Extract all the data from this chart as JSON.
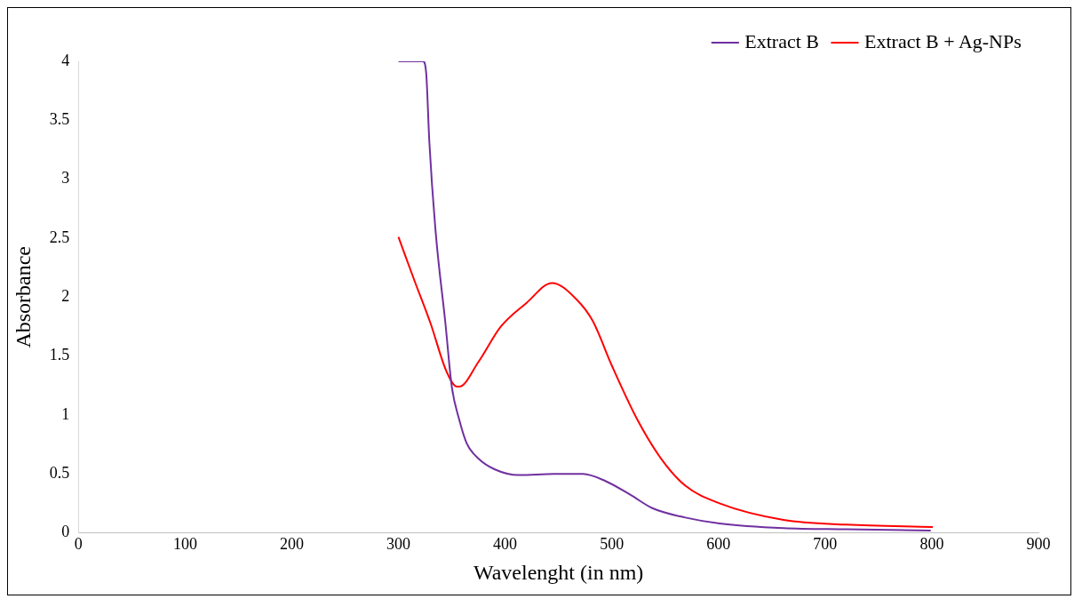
{
  "chart_data": {
    "type": "line",
    "xlabel": "Wavelenght (in nm)",
    "ylabel": "Absorbance",
    "xlim": [
      0,
      900
    ],
    "xticks": [
      0,
      100,
      200,
      300,
      400,
      500,
      600,
      700,
      800,
      900
    ],
    "ylim": [
      0,
      4
    ],
    "yticks": [
      0,
      0.5,
      1,
      1.5,
      2,
      2.5,
      3,
      3.5,
      4
    ],
    "grid": false,
    "legend": "top right",
    "marker": "none",
    "line_style": "solid",
    "series": [
      {
        "name": "Extract B",
        "color": "#7030a0",
        "x": [
          300,
          323,
          326,
          329,
          335,
          344,
          350,
          357,
          364,
          375,
          390,
          413,
          446,
          473,
          494,
          518,
          538,
          569,
          601,
          661,
          720,
          799
        ],
        "values": [
          4,
          4,
          3.9,
          3.31,
          2.54,
          1.78,
          1.24,
          0.96,
          0.76,
          0.63,
          0.54,
          0.49,
          0.5,
          0.5,
          0.44,
          0.32,
          0.21,
          0.13,
          0.08,
          0.04,
          0.03,
          0.02
        ]
      },
      {
        "name": "Extract B + Ag-NPs",
        "color": "#ff0000",
        "x": [
          300,
          315,
          330,
          345,
          355,
          357,
          375,
          396,
          420,
          444,
          467,
          482,
          500,
          524,
          547,
          569,
          601,
          661,
          720,
          801
        ],
        "values": [
          2.51,
          2.14,
          1.78,
          1.37,
          1.24,
          1.24,
          1.45,
          1.75,
          1.95,
          2.12,
          1.98,
          1.8,
          1.42,
          0.96,
          0.62,
          0.4,
          0.25,
          0.11,
          0.07,
          0.05
        ]
      }
    ]
  }
}
